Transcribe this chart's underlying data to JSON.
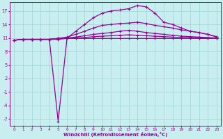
{
  "xlabel": "Windchill (Refroidissement éolien,°C)",
  "background_color": "#c8eef0",
  "line_color": "#990099",
  "grid_color": "#a8d8d8",
  "xlim": [
    -0.5,
    23.5
  ],
  "ylim": [
    -8.5,
    19.0
  ],
  "yticks": [
    -7,
    -4,
    -1,
    2,
    5,
    8,
    11,
    14,
    17
  ],
  "xticks": [
    0,
    1,
    2,
    3,
    4,
    5,
    6,
    7,
    8,
    9,
    10,
    11,
    12,
    13,
    14,
    15,
    16,
    17,
    18,
    19,
    20,
    21,
    22,
    23
  ],
  "x": [
    0,
    1,
    2,
    3,
    4,
    5,
    6,
    7,
    8,
    9,
    10,
    11,
    12,
    13,
    14,
    15,
    16,
    17,
    18,
    19,
    20,
    21,
    22,
    23
  ],
  "line1": [
    10.5,
    10.7,
    10.7,
    10.7,
    10.7,
    10.7,
    10.9,
    10.9,
    10.9,
    10.9,
    10.9,
    10.9,
    10.9,
    10.9,
    10.9,
    10.9,
    10.9,
    10.9,
    10.9,
    10.9,
    10.9,
    10.9,
    10.9,
    10.9
  ],
  "line2": [
    10.5,
    10.7,
    10.7,
    10.7,
    10.7,
    -7.5,
    10.9,
    12.5,
    14.0,
    15.5,
    16.5,
    17.0,
    17.2,
    17.5,
    18.2,
    17.9,
    16.5,
    14.5,
    14.0,
    13.2,
    12.5,
    12.2,
    11.8,
    11.2
  ],
  "line3": [
    10.5,
    10.7,
    10.7,
    10.7,
    10.7,
    10.9,
    11.2,
    11.8,
    12.5,
    13.2,
    13.8,
    14.0,
    14.2,
    14.3,
    14.5,
    14.2,
    13.8,
    13.5,
    13.2,
    12.8,
    12.5,
    12.2,
    11.8,
    11.3
  ],
  "line4": [
    10.5,
    10.7,
    10.7,
    10.7,
    10.7,
    10.9,
    11.0,
    11.2,
    11.5,
    11.8,
    12.0,
    12.2,
    12.5,
    12.7,
    12.5,
    12.2,
    12.0,
    11.8,
    11.6,
    11.4,
    11.3,
    11.2,
    11.1,
    11.0
  ],
  "line5": [
    10.5,
    10.7,
    10.7,
    10.7,
    10.7,
    10.9,
    11.0,
    11.0,
    11.1,
    11.3,
    11.4,
    11.5,
    11.6,
    11.7,
    11.6,
    11.5,
    11.4,
    11.3,
    11.2,
    11.1,
    11.1,
    11.0,
    11.0,
    11.0
  ]
}
